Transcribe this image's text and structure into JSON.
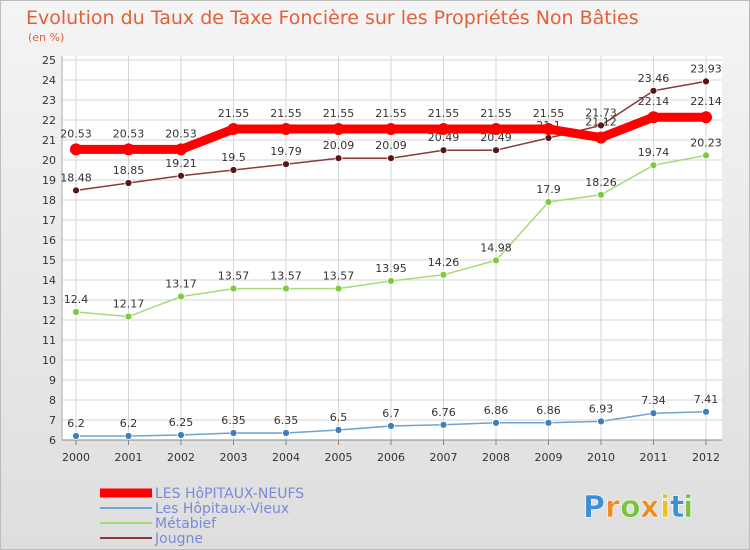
{
  "chart_data": {
    "type": "line",
    "title": "Evolution du Taux de Taxe Foncière sur les Propriétés Non Bâties",
    "subtitle": "(en %)",
    "x": [
      "2000",
      "2001",
      "2002",
      "2003",
      "2004",
      "2005",
      "2006",
      "2007",
      "2008",
      "2009",
      "2010",
      "2011",
      "2012"
    ],
    "ylim": [
      6,
      25
    ],
    "yticks": [
      6,
      7,
      8,
      9,
      10,
      11,
      12,
      13,
      14,
      15,
      16,
      17,
      18,
      19,
      20,
      21,
      22,
      23,
      24,
      25
    ],
    "grid": true,
    "legend_position": "bottom-left",
    "series": [
      {
        "name": "LES HôPITAUX-NEUFS",
        "color": "#ff0000",
        "dot_color": "#ff0000",
        "values": [
          20.53,
          20.53,
          20.53,
          21.55,
          21.55,
          21.55,
          21.55,
          21.55,
          21.55,
          21.55,
          21.12,
          22.14,
          22.14
        ],
        "labels": [
          "20.53",
          "20.53",
          "20.53",
          "21.55",
          "21.55",
          "21.55",
          "21.55",
          "21.55",
          "21.55",
          "21.55",
          "21.12",
          "22.14",
          "22.14"
        ]
      },
      {
        "name": "Les Hôpitaux-Vieux",
        "color": "#6fa3d0",
        "dot_color": "#3d7fb8",
        "values": [
          6.2,
          6.2,
          6.25,
          6.35,
          6.35,
          6.5,
          6.7,
          6.76,
          6.86,
          6.86,
          6.93,
          7.34,
          7.41
        ],
        "labels": [
          "6.2",
          "6.2",
          "6.25",
          "6.35",
          "6.35",
          "6.5",
          "6.7",
          "6.76",
          "6.86",
          "6.86",
          "6.93",
          "7.34",
          "7.41"
        ]
      },
      {
        "name": "Métabief",
        "color": "#a6d97a",
        "dot_color": "#7ccc3f",
        "values": [
          12.4,
          12.17,
          13.17,
          13.57,
          13.57,
          13.57,
          13.95,
          14.26,
          14.98,
          17.9,
          18.26,
          19.74,
          20.23
        ],
        "labels": [
          "12.4",
          "12.17",
          "13.17",
          "13.57",
          "13.57",
          "13.57",
          "13.95",
          "14.26",
          "14.98",
          "17.9",
          "18.26",
          "19.74",
          "20.23"
        ]
      },
      {
        "name": "Jougne",
        "color": "#8b3a3a",
        "dot_color": "#5a1616",
        "values": [
          18.48,
          18.85,
          19.21,
          19.5,
          19.79,
          20.09,
          20.09,
          20.49,
          20.49,
          21.1,
          21.73,
          23.46,
          23.93
        ],
        "labels": [
          "18.48",
          "18.85",
          "19.21",
          "19.5",
          "19.79",
          "20.09",
          "20.09",
          "20.49",
          "20.49",
          "21.1",
          "21.73",
          "23.46",
          "23.93"
        ]
      }
    ]
  },
  "logo": {
    "letters": [
      "P",
      "r",
      "o",
      "x",
      "i",
      "t",
      "i"
    ],
    "colors": [
      "#3a8fd8",
      "#f08a24",
      "#7cc242",
      "#f08a24",
      "#e8c020",
      "#3a8fd8",
      "#7cc242"
    ]
  }
}
